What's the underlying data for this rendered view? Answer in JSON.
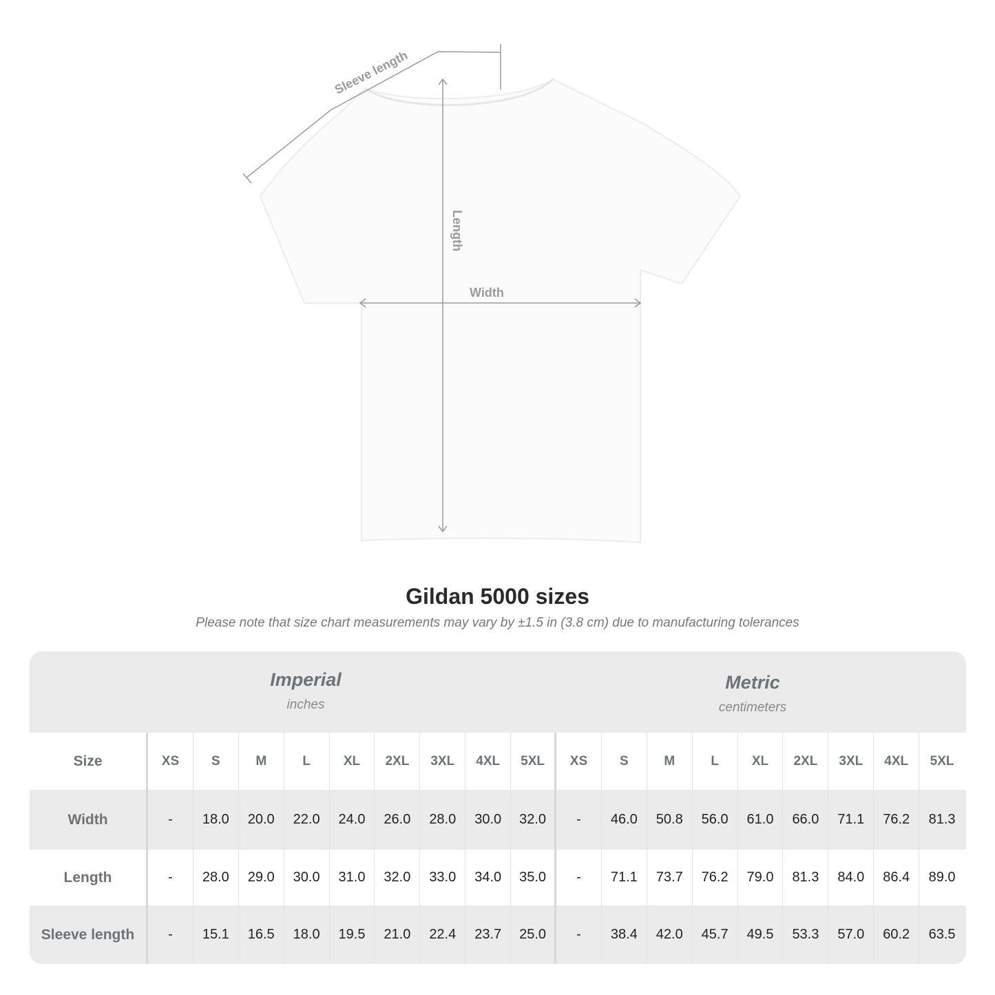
{
  "diagram": {
    "labels": {
      "sleeve": "Sleeve length",
      "length": "Length",
      "width": "Width"
    }
  },
  "title": "Gildan 5000 sizes",
  "subtitle": "Please note that size chart measurements may vary by ±1.5 in (3.8 cm) due to manufacturing tolerances",
  "table": {
    "imperial": {
      "name": "Imperial",
      "unit": "inches"
    },
    "metric": {
      "name": "Metric",
      "unit": "centimeters"
    },
    "size_label": "Size",
    "sizes": [
      "XS",
      "S",
      "M",
      "L",
      "XL",
      "2XL",
      "3XL",
      "4XL",
      "5XL"
    ],
    "rows": [
      {
        "label": "Width",
        "imperial": [
          "-",
          "18.0",
          "20.0",
          "22.0",
          "24.0",
          "26.0",
          "28.0",
          "30.0",
          "32.0"
        ],
        "metric": [
          "-",
          "46.0",
          "50.8",
          "56.0",
          "61.0",
          "66.0",
          "71.1",
          "76.2",
          "81.3"
        ]
      },
      {
        "label": "Length",
        "imperial": [
          "-",
          "28.0",
          "29.0",
          "30.0",
          "31.0",
          "32.0",
          "33.0",
          "34.0",
          "35.0"
        ],
        "metric": [
          "-",
          "71.1",
          "73.7",
          "76.2",
          "79.0",
          "81.3",
          "84.0",
          "86.4",
          "89.0"
        ]
      },
      {
        "label": "Sleeve length",
        "imperial": [
          "-",
          "15.1",
          "16.5",
          "18.0",
          "19.5",
          "21.0",
          "22.4",
          "23.7",
          "25.0"
        ],
        "metric": [
          "-",
          "38.4",
          "42.0",
          "45.7",
          "49.5",
          "53.3",
          "57.0",
          "60.2",
          "63.5"
        ]
      }
    ]
  },
  "colors": {
    "band": "#ebebeb",
    "label": "#6d7375",
    "measure_line": "#9a9a9a"
  }
}
